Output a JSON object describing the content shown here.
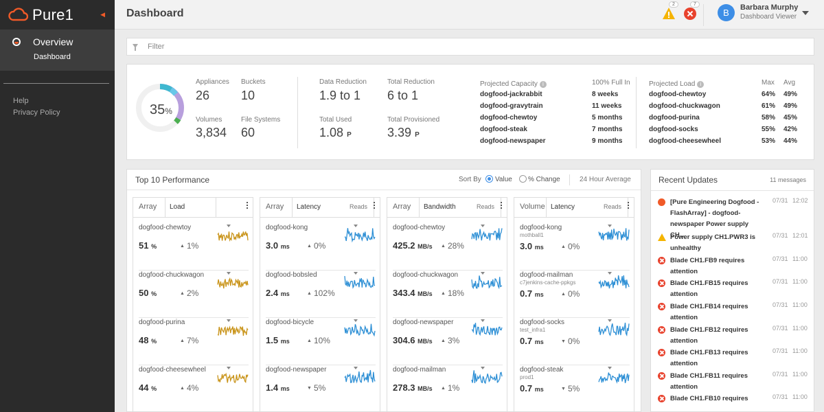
{
  "app": {
    "name": "Pure1",
    "collapse_icon": "chevron-left-icon"
  },
  "sidebar": {
    "section": "Overview",
    "item": "Dashboard",
    "links": [
      "Help",
      "Privacy Policy"
    ]
  },
  "header": {
    "title": "Dashboard",
    "warning_count": "2",
    "error_count": "7",
    "user": {
      "initial": "B",
      "name": "Barbara Murphy",
      "role": "Dashboard Viewer"
    }
  },
  "filter": {
    "placeholder": "Filter"
  },
  "summary": {
    "percent": "35",
    "percent_sign": "%",
    "used_fraction": 0.35,
    "stats": {
      "appliances": {
        "label": "Appliances",
        "value": "26"
      },
      "buckets": {
        "label": "Buckets",
        "value": "10"
      },
      "volumes": {
        "label": "Volumes",
        "value": "3,834"
      },
      "file_systems": {
        "label": "File Systems",
        "value": "60"
      },
      "data_reduction": {
        "label": "Data Reduction",
        "value": "1.9 to 1"
      },
      "total_reduction": {
        "label": "Total Reduction",
        "value": "6 to 1"
      },
      "total_used": {
        "label": "Total Used",
        "value": "1.08",
        "unit": "P"
      },
      "total_provisioned": {
        "label": "Total Provisioned",
        "value": "3.39",
        "unit": "P"
      }
    },
    "projected_capacity": {
      "title": "Projected Capacity",
      "col": "100% Full In",
      "rows": [
        {
          "name": "dogfood-jackrabbit",
          "value": "8 weeks"
        },
        {
          "name": "dogfood-gravytrain",
          "value": "11 weeks"
        },
        {
          "name": "dogfood-chewtoy",
          "value": "5 months"
        },
        {
          "name": "dogfood-steak",
          "value": "7 months"
        },
        {
          "name": "dogfood-newspaper",
          "value": "9 months"
        }
      ]
    },
    "projected_load": {
      "title": "Projected Load",
      "col_max": "Max",
      "col_avg": "Avg",
      "rows": [
        {
          "name": "dogfood-chewtoy",
          "max": "64%",
          "avg": "49%"
        },
        {
          "name": "dogfood-chuckwagon",
          "max": "61%",
          "avg": "49%"
        },
        {
          "name": "dogfood-purina",
          "max": "58%",
          "avg": "45%"
        },
        {
          "name": "dogfood-socks",
          "max": "55%",
          "avg": "42%"
        },
        {
          "name": "dogfood-cheesewheel",
          "max": "53%",
          "avg": "44%"
        }
      ]
    }
  },
  "performance": {
    "title": "Top 10 Performance",
    "sort_by": "Sort By",
    "opt_value": "Value",
    "opt_change": "% Change",
    "average": "24 Hour Average",
    "columns": [
      {
        "type": "Array",
        "metric": "Load",
        "reads": "",
        "color": "#c9941a",
        "rows": [
          {
            "name": "dogfood-chewtoy",
            "sub": "",
            "value": "51",
            "unit": "%",
            "dir": "up",
            "change": "1%"
          },
          {
            "name": "dogfood-chuckwagon",
            "sub": "",
            "value": "50",
            "unit": "%",
            "dir": "up",
            "change": "2%"
          },
          {
            "name": "dogfood-purina",
            "sub": "",
            "value": "48",
            "unit": "%",
            "dir": "up",
            "change": "7%"
          },
          {
            "name": "dogfood-cheesewheel",
            "sub": "",
            "value": "44",
            "unit": "%",
            "dir": "up",
            "change": "4%"
          }
        ]
      },
      {
        "type": "Array",
        "metric": "Latency",
        "reads": "Reads",
        "color": "#2d8fd5",
        "rows": [
          {
            "name": "dogfood-kong",
            "sub": "",
            "value": "3.0",
            "unit": "ms",
            "dir": "up",
            "change": "0%"
          },
          {
            "name": "dogfood-bobsled",
            "sub": "",
            "value": "2.4",
            "unit": "ms",
            "dir": "up",
            "change": "102%"
          },
          {
            "name": "dogfood-bicycle",
            "sub": "",
            "value": "1.5",
            "unit": "ms",
            "dir": "up",
            "change": "10%"
          },
          {
            "name": "dogfood-newspaper",
            "sub": "",
            "value": "1.4",
            "unit": "ms",
            "dir": "down",
            "change": "5%"
          }
        ]
      },
      {
        "type": "Array",
        "metric": "Bandwidth",
        "reads": "Reads",
        "color": "#2d8fd5",
        "rows": [
          {
            "name": "dogfood-chewtoy",
            "sub": "",
            "value": "425.2",
            "unit": "MB/s",
            "dir": "up",
            "change": "28%"
          },
          {
            "name": "dogfood-chuckwagon",
            "sub": "",
            "value": "343.4",
            "unit": "MB/s",
            "dir": "up",
            "change": "18%"
          },
          {
            "name": "dogfood-newspaper",
            "sub": "",
            "value": "304.6",
            "unit": "MB/s",
            "dir": "up",
            "change": "3%"
          },
          {
            "name": "dogfood-mailman",
            "sub": "",
            "value": "278.3",
            "unit": "MB/s",
            "dir": "up",
            "change": "1%"
          }
        ]
      },
      {
        "type": "Volume",
        "metric": "Latency",
        "reads": "Reads",
        "color": "#2d8fd5",
        "rows": [
          {
            "name": "dogfood-kong",
            "sub": "mothball1",
            "value": "3.0",
            "unit": "ms",
            "dir": "up",
            "change": "0%"
          },
          {
            "name": "dogfood-mailman",
            "sub": "c7jenkins-cache-ppkgs",
            "value": "0.7",
            "unit": "ms",
            "dir": "up",
            "change": "0%"
          },
          {
            "name": "dogfood-socks",
            "sub": "test_infra1",
            "value": "0.7",
            "unit": "ms",
            "dir": "down",
            "change": "0%"
          },
          {
            "name": "dogfood-steak",
            "sub": "prod1",
            "value": "0.7",
            "unit": "ms",
            "dir": "down",
            "change": "5%"
          }
        ]
      }
    ]
  },
  "updates": {
    "title": "Recent Updates",
    "count": "11 messages",
    "items": [
      {
        "level": "info",
        "text": "[Pure Engineering Dogfood - FlashArray] - dogfood-newspaper Power supply CH...",
        "date": "07/31",
        "time": "12:02"
      },
      {
        "level": "warn",
        "text": "Power supply CH1.PWR3 is unhealthy",
        "date": "07/31",
        "time": "12:01"
      },
      {
        "level": "err",
        "text": "Blade CH1.FB9 requires attention",
        "date": "07/31",
        "time": "11:00"
      },
      {
        "level": "err",
        "text": "Blade CH1.FB15 requires attention",
        "date": "07/31",
        "time": "11:00"
      },
      {
        "level": "err",
        "text": "Blade CH1.FB14 requires attention",
        "date": "07/31",
        "time": "11:00"
      },
      {
        "level": "err",
        "text": "Blade CH1.FB12 requires attention",
        "date": "07/31",
        "time": "11:00"
      },
      {
        "level": "err",
        "text": "Blade CH1.FB13 requires attention",
        "date": "07/31",
        "time": "11:00"
      },
      {
        "level": "err",
        "text": "Blade CH1.FB11 requires attention",
        "date": "07/31",
        "time": "11:00"
      },
      {
        "level": "err",
        "text": "Blade CH1.FB10 requires",
        "date": "07/31",
        "time": "11:00"
      }
    ]
  }
}
